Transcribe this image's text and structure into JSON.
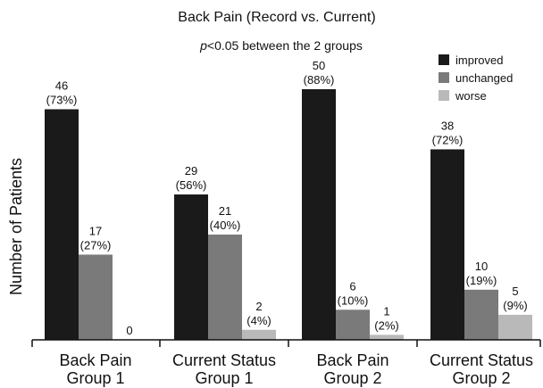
{
  "chart_data": {
    "type": "bar",
    "title": "Back Pain (Record vs. Current)",
    "annotation": {
      "italic": "p",
      "rest": "<0.05 between the 2 groups"
    },
    "xlabel": "",
    "ylabel": "Number of Patients",
    "ylim": [
      0,
      50
    ],
    "grid": false,
    "legend_position": "top-right",
    "categories": [
      [
        "Back Pain",
        "Group 1"
      ],
      [
        "Current Status",
        "Group 1"
      ],
      [
        "Back Pain",
        "Group 2"
      ],
      [
        "Current Status",
        "Group 2"
      ]
    ],
    "series": [
      {
        "name": "improved",
        "color": "#1a1a1a",
        "values": [
          46,
          29,
          50,
          38
        ],
        "percents": [
          "(73%)",
          "(56%)",
          "(88%)",
          "(72%)"
        ]
      },
      {
        "name": "unchanged",
        "color": "#7a7a7a",
        "values": [
          17,
          21,
          6,
          10
        ],
        "percents": [
          "(27%)",
          "(40%)",
          "(10%)",
          "(19%)"
        ]
      },
      {
        "name": "worse",
        "color": "#b9b9b9",
        "values": [
          0,
          2,
          1,
          5
        ],
        "percents": [
          "",
          "(4%)",
          "(2%)",
          "(9%)"
        ]
      }
    ]
  }
}
